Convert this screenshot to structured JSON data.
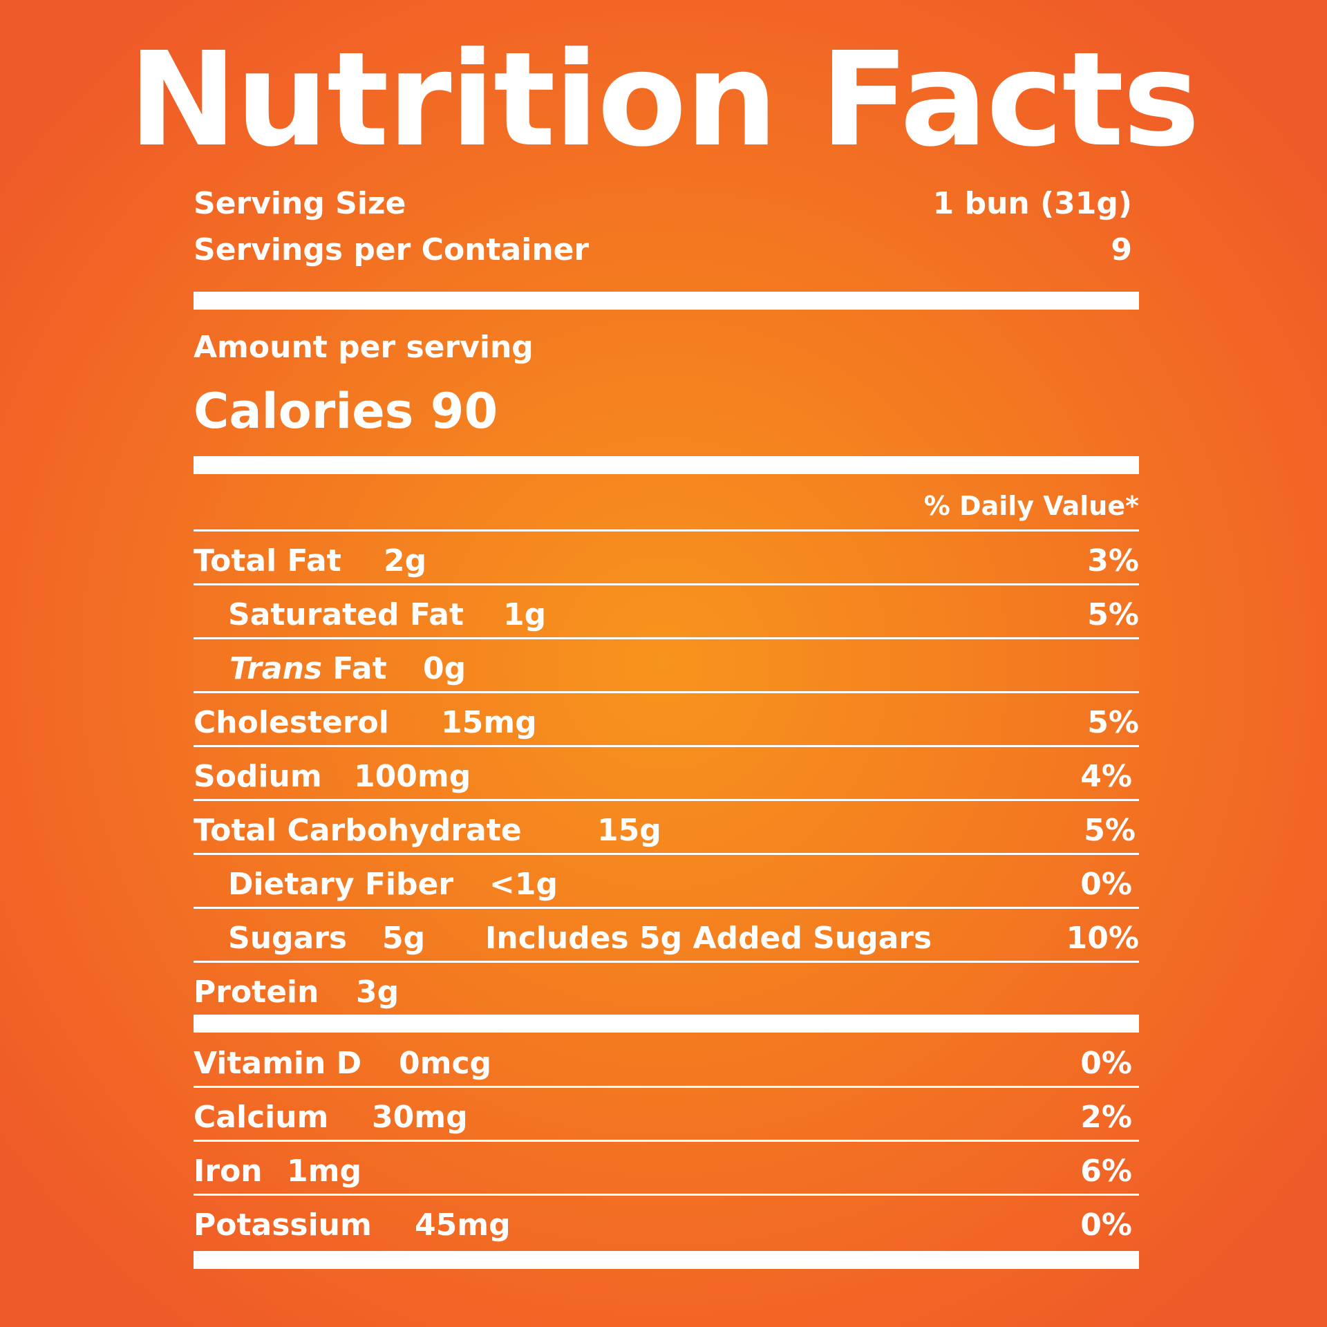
{
  "title": "Nutrition Facts",
  "serving": {
    "size_label": "Serving Size",
    "size_value": "1 bun (31g)",
    "per_container_label": "Servings per Container",
    "per_container_value": "9"
  },
  "amount_per_serving_label": "Amount per serving",
  "calories": {
    "label": "Calories",
    "value": "90"
  },
  "daily_value_header": "% Daily Value*",
  "nutrients": [
    {
      "name": "Total Fat",
      "amount": "2g",
      "dv": "3%"
    },
    {
      "name": "Saturated Fat",
      "amount": "1g",
      "dv": "5%"
    },
    {
      "name_italic": "Trans",
      "name": "Fat",
      "amount": "0g"
    },
    {
      "name": "Cholesterol",
      "amount": "15mg",
      "dv": "5%"
    },
    {
      "name": "Sodium",
      "amount": "100mg",
      "dv": "4%"
    },
    {
      "name": "Total Carbohydrate",
      "amount": "15g",
      "dv": "5%"
    },
    {
      "name": "Dietary Fiber",
      "amount": "<1g",
      "dv": "0%"
    },
    {
      "name": "Sugars",
      "amount": "5g",
      "extra": "Includes 5g Added Sugars",
      "dv": "10%"
    },
    {
      "name": "Protein",
      "amount": "3g"
    }
  ],
  "vitamins": [
    {
      "name": "Vitamin D",
      "amount": "0mcg",
      "dv": "0%"
    },
    {
      "name": "Calcium",
      "amount": "30mg",
      "dv": "2%"
    },
    {
      "name": "Iron",
      "amount": "1mg",
      "dv": "6%"
    },
    {
      "name": "Potassium",
      "amount": "45mg",
      "dv": "0%"
    }
  ]
}
